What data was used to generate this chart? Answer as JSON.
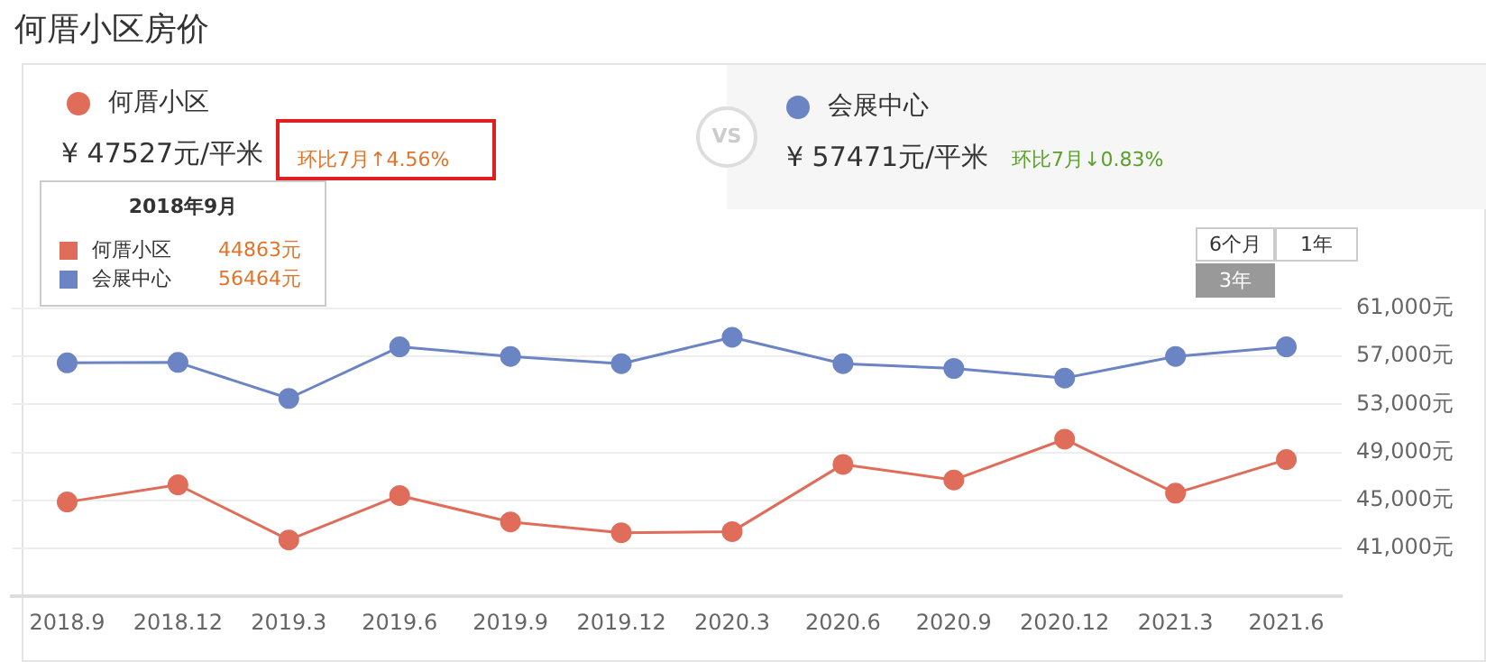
{
  "chart_data": {
    "type": "line",
    "title": "何厝小区房价",
    "categories": [
      "2018.9",
      "2018.12",
      "2019.3",
      "2019.6",
      "2019.9",
      "2019.12",
      "2020.3",
      "2020.6",
      "2020.9",
      "2020.12",
      "2021.3",
      "2021.6"
    ],
    "series": [
      {
        "name": "何厝小区",
        "color": "#e06c5a",
        "values": [
          44863,
          46300,
          41700,
          45400,
          43200,
          42300,
          42400,
          48000,
          46700,
          50100,
          45600,
          48400
        ]
      },
      {
        "name": "会展中心",
        "color": "#6b84c4",
        "values": [
          56464,
          56500,
          53500,
          57800,
          57000,
          56400,
          58600,
          56400,
          56000,
          55200,
          57000,
          57800
        ]
      }
    ],
    "ylim": [
      37000,
      61000
    ],
    "yticks": [
      {
        "value": 41000,
        "label": "41,000元"
      },
      {
        "value": 45000,
        "label": "45,000元"
      },
      {
        "value": 49000,
        "label": "49,000元"
      },
      {
        "value": 53000,
        "label": "53,000元"
      },
      {
        "value": 57000,
        "label": "57,000元"
      },
      {
        "value": 61000,
        "label": "61,000元"
      }
    ],
    "grid": "y",
    "legend": "top",
    "marker": "circle",
    "line_style": "solid",
    "annotations": [
      "¥ 47527元/平米",
      "环比7月↑4.56%",
      "¥ 57471元/平米",
      "环比7月↓0.83%",
      "VS",
      "6个月",
      "1年",
      "3年",
      "2018年9月",
      "44863元",
      "56464元"
    ]
  }
}
